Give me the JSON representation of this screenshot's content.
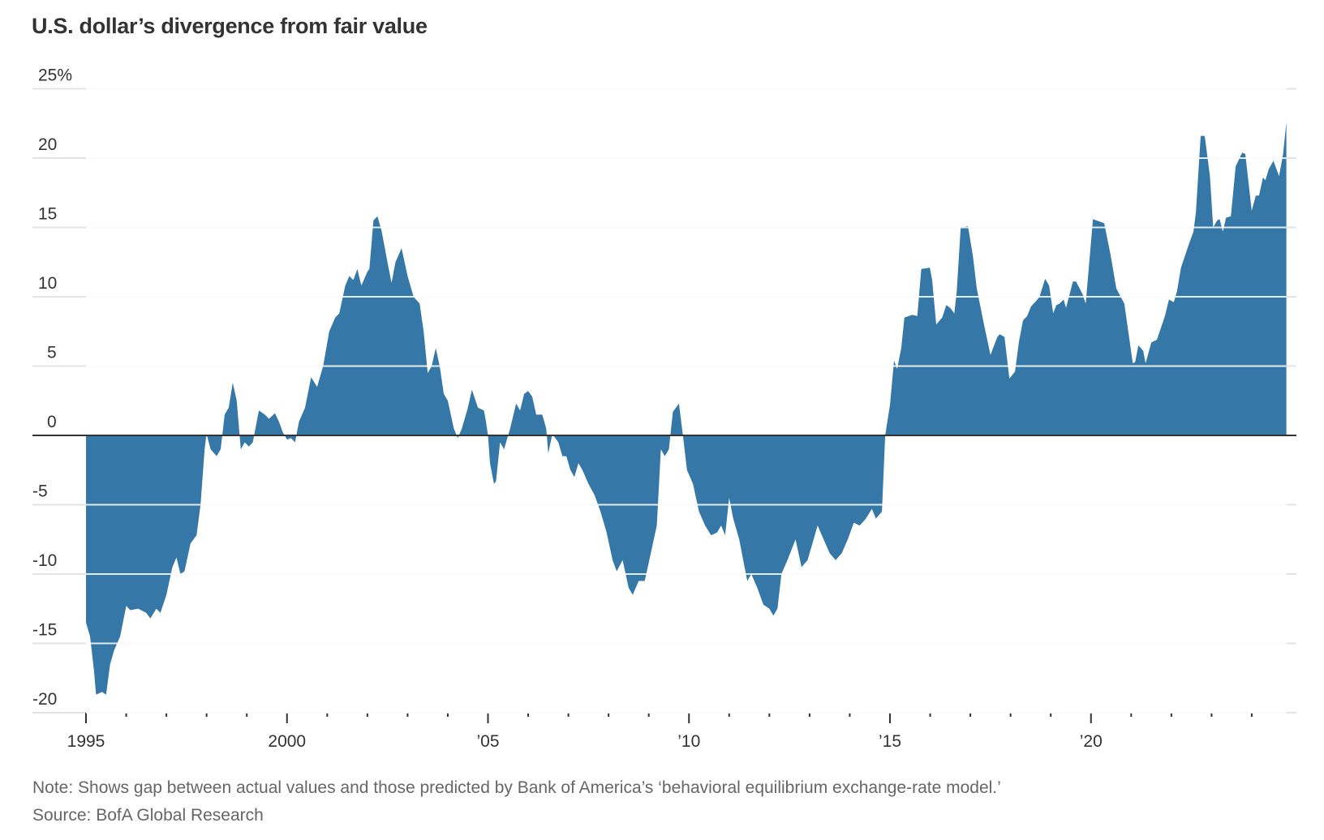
{
  "title": "U.S. dollar’s divergence from fair value",
  "note": "Note: Shows gap between actual values and those predicted by Bank of America’s ‘behavioral equilibrium exchange-rate model.’",
  "source": "Source: BofA Global Research",
  "colors": {
    "area": "#3578a8",
    "zero_line": "#333333",
    "grid": "#e3e3e3",
    "tick_text": "#333333"
  },
  "chart_data": {
    "type": "area",
    "title": "U.S. dollar’s divergence from fair value",
    "xlabel": "",
    "ylabel": "",
    "unit": "%",
    "xlim": [
      1994.4,
      2025.2
    ],
    "ylim": [
      -20,
      25
    ],
    "grid": true,
    "legend": "none",
    "y_ticks": [
      {
        "value": 25,
        "label": "25%"
      },
      {
        "value": 20,
        "label": "20"
      },
      {
        "value": 15,
        "label": "15"
      },
      {
        "value": 10,
        "label": "10"
      },
      {
        "value": 5,
        "label": "5"
      },
      {
        "value": 0,
        "label": "0"
      },
      {
        "value": -5,
        "label": "-5"
      },
      {
        "value": -10,
        "label": "-10"
      },
      {
        "value": -15,
        "label": "-15"
      },
      {
        "value": -20,
        "label": "-20"
      }
    ],
    "x_major_ticks": [
      {
        "value": 1995,
        "label": "1995"
      },
      {
        "value": 2000,
        "label": "2000"
      },
      {
        "value": 2005,
        "label": "’05"
      },
      {
        "value": 2010,
        "label": "’10"
      },
      {
        "value": 2015,
        "label": "’15"
      },
      {
        "value": 2020,
        "label": "’20"
      }
    ],
    "x_minor_ticks": [
      1996,
      1997,
      1998,
      1999,
      2001,
      2002,
      2003,
      2004,
      2006,
      2007,
      2008,
      2009,
      2011,
      2012,
      2013,
      2014,
      2016,
      2017,
      2018,
      2019,
      2021,
      2022,
      2023,
      2024
    ],
    "series": [
      {
        "name": "Divergence from fair value (%)",
        "x": [
          1995.0,
          1995.1,
          1995.2,
          1995.25,
          1995.4,
          1995.5,
          1995.6,
          1995.7,
          1995.85,
          1996.0,
          1996.1,
          1996.3,
          1996.5,
          1996.6,
          1996.75,
          1996.85,
          1997.0,
          1997.15,
          1997.25,
          1997.35,
          1997.45,
          1997.6,
          1997.75,
          1997.85,
          1997.95,
          1998.0,
          1998.1,
          1998.25,
          1998.35,
          1998.45,
          1998.55,
          1998.65,
          1998.75,
          1998.85,
          1998.95,
          1999.05,
          1999.15,
          1999.3,
          1999.45,
          1999.55,
          1999.7,
          1999.8,
          1999.9,
          2000.0,
          2000.1,
          2000.2,
          2000.3,
          2000.45,
          2000.6,
          2000.75,
          2000.9,
          2001.05,
          2001.2,
          2001.3,
          2001.45,
          2001.55,
          2001.65,
          2001.75,
          2001.85,
          2002.0,
          2002.05,
          2002.15,
          2002.25,
          2002.35,
          2002.5,
          2002.6,
          2002.7,
          2002.85,
          2003.0,
          2003.15,
          2003.3,
          2003.4,
          2003.5,
          2003.6,
          2003.7,
          2003.8,
          2003.9,
          2004.0,
          2004.15,
          2004.25,
          2004.35,
          2004.5,
          2004.6,
          2004.75,
          2004.9,
          2004.95,
          2005.0,
          2005.05,
          2005.15,
          2005.2,
          2005.3,
          2005.4,
          2005.55,
          2005.7,
          2005.8,
          2005.9,
          2006.0,
          2006.1,
          2006.2,
          2006.35,
          2006.45,
          2006.5,
          2006.6,
          2006.75,
          2006.85,
          2006.95,
          2007.05,
          2007.15,
          2007.25,
          2007.35,
          2007.5,
          2007.65,
          2007.8,
          2007.95,
          2008.1,
          2008.2,
          2008.35,
          2008.5,
          2008.6,
          2008.75,
          2008.9,
          2009.05,
          2009.2,
          2009.3,
          2009.4,
          2009.5,
          2009.6,
          2009.75,
          2009.85,
          2009.95,
          2010.1,
          2010.25,
          2010.4,
          2010.55,
          2010.7,
          2010.8,
          2010.9,
          2011.0,
          2011.1,
          2011.25,
          2011.35,
          2011.45,
          2011.55,
          2011.7,
          2011.85,
          2012.0,
          2012.1,
          2012.2,
          2012.3,
          2012.45,
          2012.65,
          2012.8,
          2012.95,
          2013.1,
          2013.2,
          2013.35,
          2013.5,
          2013.65,
          2013.8,
          2013.95,
          2014.1,
          2014.25,
          2014.4,
          2014.55,
          2014.65,
          2014.8,
          2014.88,
          2015.0,
          2015.1,
          2015.18,
          2015.28,
          2015.36,
          2015.56,
          2015.68,
          2015.78,
          2015.99,
          2016.05,
          2016.15,
          2016.3,
          2016.4,
          2016.5,
          2016.6,
          2016.66,
          2016.76,
          2016.94,
          2017.06,
          2017.16,
          2017.34,
          2017.5,
          2017.67,
          2017.73,
          2017.85,
          2017.97,
          2018.11,
          2018.21,
          2018.31,
          2018.41,
          2018.51,
          2018.67,
          2018.72,
          2018.86,
          2018.96,
          2019.06,
          2019.14,
          2019.22,
          2019.32,
          2019.38,
          2019.55,
          2019.63,
          2019.79,
          2019.87,
          2020.05,
          2020.33,
          2020.49,
          2020.63,
          2020.83,
          2021.04,
          2021.1,
          2021.18,
          2021.3,
          2021.36,
          2021.5,
          2021.64,
          2021.84,
          2021.94,
          2022.06,
          2022.14,
          2022.24,
          2022.45,
          2022.55,
          2022.61,
          2022.73,
          2022.83,
          2022.96,
          2023.04,
          2023.14,
          2023.2,
          2023.28,
          2023.36,
          2023.48,
          2023.6,
          2023.76,
          2023.84,
          2024.0,
          2024.1,
          2024.18,
          2024.28,
          2024.34,
          2024.42,
          2024.54,
          2024.68,
          2024.78,
          2024.86
        ],
        "values": [
          -13.5,
          -14.5,
          -17,
          -18.7,
          -18.5,
          -18.7,
          -16.5,
          -15.5,
          -14.5,
          -12.3,
          -12.6,
          -12.5,
          -12.8,
          -13.2,
          -12.5,
          -12.8,
          -11.5,
          -9.5,
          -8.8,
          -10,
          -9.8,
          -7.8,
          -7.2,
          -5,
          -1,
          0.1,
          -1,
          -1.5,
          -1,
          1.5,
          2,
          3.8,
          2.5,
          -1,
          -0.5,
          -0.8,
          -0.5,
          1.8,
          1.5,
          1.2,
          1.6,
          1,
          0.2,
          -0.3,
          -0.2,
          -0.5,
          1,
          2,
          4.2,
          3.5,
          5,
          7.5,
          8.5,
          8.8,
          10.8,
          11.5,
          11.2,
          12,
          10.8,
          11.8,
          12,
          15.5,
          15.8,
          14.8,
          12.5,
          11,
          12.5,
          13.5,
          11.5,
          10,
          9.5,
          7.5,
          4.5,
          5,
          6.3,
          5,
          3,
          2.5,
          0.5,
          -0.2,
          0.5,
          2,
          3.3,
          2,
          1.8,
          1,
          0,
          -2,
          -3.5,
          -3.3,
          -0.5,
          -1,
          0.5,
          2.3,
          1.8,
          3,
          3.2,
          2.8,
          1.5,
          1.5,
          0.5,
          -1.3,
          0.1,
          -0.5,
          -1.5,
          -1.5,
          -2.5,
          -3,
          -2,
          -2.5,
          -3.5,
          -4.3,
          -5.5,
          -7,
          -9,
          -9.8,
          -9,
          -11,
          -11.5,
          -10.5,
          -10.5,
          -8.5,
          -6.5,
          -1,
          -1.5,
          -1,
          1.7,
          2.3,
          0,
          -2.5,
          -3.5,
          -5.5,
          -6.5,
          -7.2,
          -7,
          -6.5,
          -7.2,
          -4.5,
          -6,
          -7.5,
          -9,
          -10.5,
          -10,
          -11,
          -12.2,
          -12.5,
          -13,
          -12.5,
          -10,
          -9,
          -7.5,
          -9.5,
          -9,
          -7.5,
          -6.5,
          -7.5,
          -8.5,
          -9,
          -8.5,
          -7.5,
          -6.3,
          -6.5,
          -6,
          -5.3,
          -6,
          -5.5,
          0,
          2.2,
          5.4,
          4.8,
          6.3,
          8.5,
          8.7,
          8.6,
          12,
          12.1,
          11.2,
          8,
          8.5,
          9.4,
          9.2,
          8.8,
          10.4,
          15,
          15.1,
          13,
          10.6,
          8,
          5.8,
          7.1,
          7.3,
          7.1,
          4.1,
          4.6,
          6.8,
          8.3,
          8.6,
          9.3,
          9.8,
          10,
          11.3,
          10.8,
          8.8,
          9.4,
          9.5,
          9.8,
          9.2,
          11.1,
          11.1,
          10.2,
          9.5,
          15.6,
          15.3,
          13,
          10.6,
          9.5,
          5.2,
          5.3,
          6.5,
          6.1,
          5.2,
          6.7,
          6.9,
          8.6,
          9.8,
          9.6,
          10.4,
          12.1,
          13.9,
          14.7,
          16.1,
          21.6,
          21.6,
          18.7,
          15,
          15.5,
          15.6,
          14.7,
          15.7,
          15.8,
          19.4,
          20.4,
          20.3,
          16.2,
          17.3,
          17.3,
          18.6,
          18.4,
          19.2,
          19.8,
          18.7,
          20.3,
          22.6
        ]
      }
    ]
  }
}
